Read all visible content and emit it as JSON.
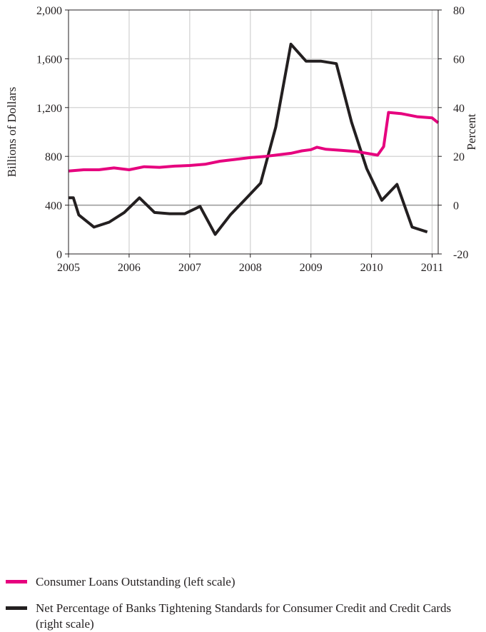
{
  "chart_data": {
    "type": "line",
    "title": "",
    "xlabel": "",
    "ylabel_left": "Billions of Dollars",
    "ylabel_right": "Percent",
    "x_range": [
      2005,
      2011.1
    ],
    "x_ticks": [
      2005,
      2006,
      2007,
      2008,
      2009,
      2010,
      2011
    ],
    "x_tick_labels": [
      "2005",
      "2006",
      "2007",
      "2008",
      "2009",
      "2010",
      "2011"
    ],
    "ylim_left": [
      0,
      2000
    ],
    "y_ticks_left": [
      0,
      400,
      800,
      1200,
      1600,
      2000
    ],
    "y_tick_labels_left": [
      "0",
      "400",
      "800",
      "1,200",
      "1,600",
      "2,000"
    ],
    "ylim_right": [
      -20,
      80
    ],
    "y_ticks_right": [
      -20,
      0,
      20,
      40,
      60,
      80
    ],
    "y_tick_labels_right": [
      "-20",
      "0",
      "20",
      "40",
      "60",
      "80"
    ],
    "grid": true,
    "zero_line_right": 0,
    "legend_position": "bottom",
    "series": [
      {
        "name": "Consumer Loans Outstanding (left scale)",
        "axis": "left",
        "color": "#e6007e",
        "x": [
          2005.0,
          2005.25,
          2005.5,
          2005.75,
          2006.0,
          2006.25,
          2006.5,
          2006.75,
          2007.0,
          2007.25,
          2007.5,
          2007.75,
          2008.0,
          2008.25,
          2008.5,
          2008.67,
          2008.85,
          2009.0,
          2009.1,
          2009.25,
          2009.5,
          2009.75,
          2009.92,
          2010.1,
          2010.2,
          2010.28,
          2010.5,
          2010.75,
          2011.0,
          2011.1
        ],
        "values": [
          680,
          690,
          690,
          705,
          690,
          715,
          710,
          720,
          725,
          735,
          760,
          775,
          790,
          800,
          815,
          825,
          845,
          855,
          875,
          858,
          850,
          840,
          825,
          810,
          880,
          1160,
          1150,
          1125,
          1115,
          1075
        ]
      },
      {
        "name": "Net Percentage of Banks Tightening Standards for Consumer Credit and Credit Cards (right scale)",
        "axis": "right",
        "color": "#231f20",
        "x": [
          2005.0,
          2005.08,
          2005.17,
          2005.42,
          2005.67,
          2005.92,
          2006.17,
          2006.42,
          2006.67,
          2006.92,
          2007.17,
          2007.42,
          2007.67,
          2007.92,
          2008.17,
          2008.42,
          2008.67,
          2008.92,
          2009.17,
          2009.42,
          2009.67,
          2009.92,
          2010.17,
          2010.42,
          2010.67,
          2010.92
        ],
        "values": [
          3,
          3,
          -4,
          -9,
          -7,
          -3,
          3,
          -3,
          -3.5,
          -3.5,
          -0.5,
          -12,
          -4,
          2.5,
          9,
          32,
          66,
          59,
          59,
          58,
          34,
          15,
          2,
          8.5,
          -9,
          -11
        ]
      }
    ]
  }
}
